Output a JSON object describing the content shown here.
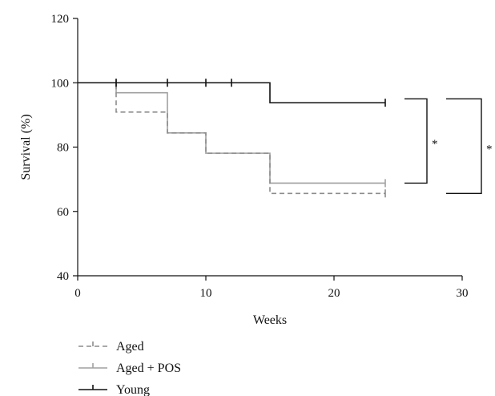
{
  "chart_data": {
    "type": "line",
    "subtype": "kaplan-meier",
    "xlabel": "Weeks",
    "ylabel": "Survival (%)",
    "xlim": [
      0,
      30
    ],
    "ylim": [
      40,
      120
    ],
    "x_ticks": [
      0,
      10,
      20,
      30
    ],
    "y_ticks": [
      40,
      60,
      80,
      100,
      120
    ],
    "grid": false,
    "legend_position": "bottom-left",
    "series": [
      {
        "name": "Aged",
        "color": "#8c8c8c",
        "dash": true,
        "steps": [
          [
            0,
            100
          ],
          [
            3,
            90.9
          ],
          [
            7,
            84.4
          ],
          [
            10,
            78.1
          ],
          [
            15,
            65.6
          ],
          [
            24,
            65.6
          ]
        ],
        "censored": [
          [
            3,
            100
          ],
          [
            24,
            65.6
          ]
        ]
      },
      {
        "name": "Aged + POS",
        "color": "#a0a0a0",
        "dash": false,
        "steps": [
          [
            0,
            100
          ],
          [
            3,
            96.9
          ],
          [
            7,
            84.4
          ],
          [
            10,
            78.1
          ],
          [
            15,
            68.8
          ],
          [
            24,
            68.8
          ]
        ],
        "censored": [
          [
            24,
            68.8
          ]
        ]
      },
      {
        "name": "Young",
        "color": "#111111",
        "dash": false,
        "steps": [
          [
            0,
            100
          ],
          [
            15,
            93.8
          ],
          [
            24,
            93.8
          ]
        ],
        "censored": [
          [
            3,
            100
          ],
          [
            7,
            100
          ],
          [
            10,
            100
          ],
          [
            12,
            100
          ],
          [
            24,
            93.8
          ]
        ]
      }
    ],
    "annotations": [
      {
        "label": "*",
        "y_top": 95,
        "y_bottom": 68.8
      },
      {
        "label": "*",
        "y_top": 95,
        "y_bottom": 65.6
      }
    ]
  }
}
